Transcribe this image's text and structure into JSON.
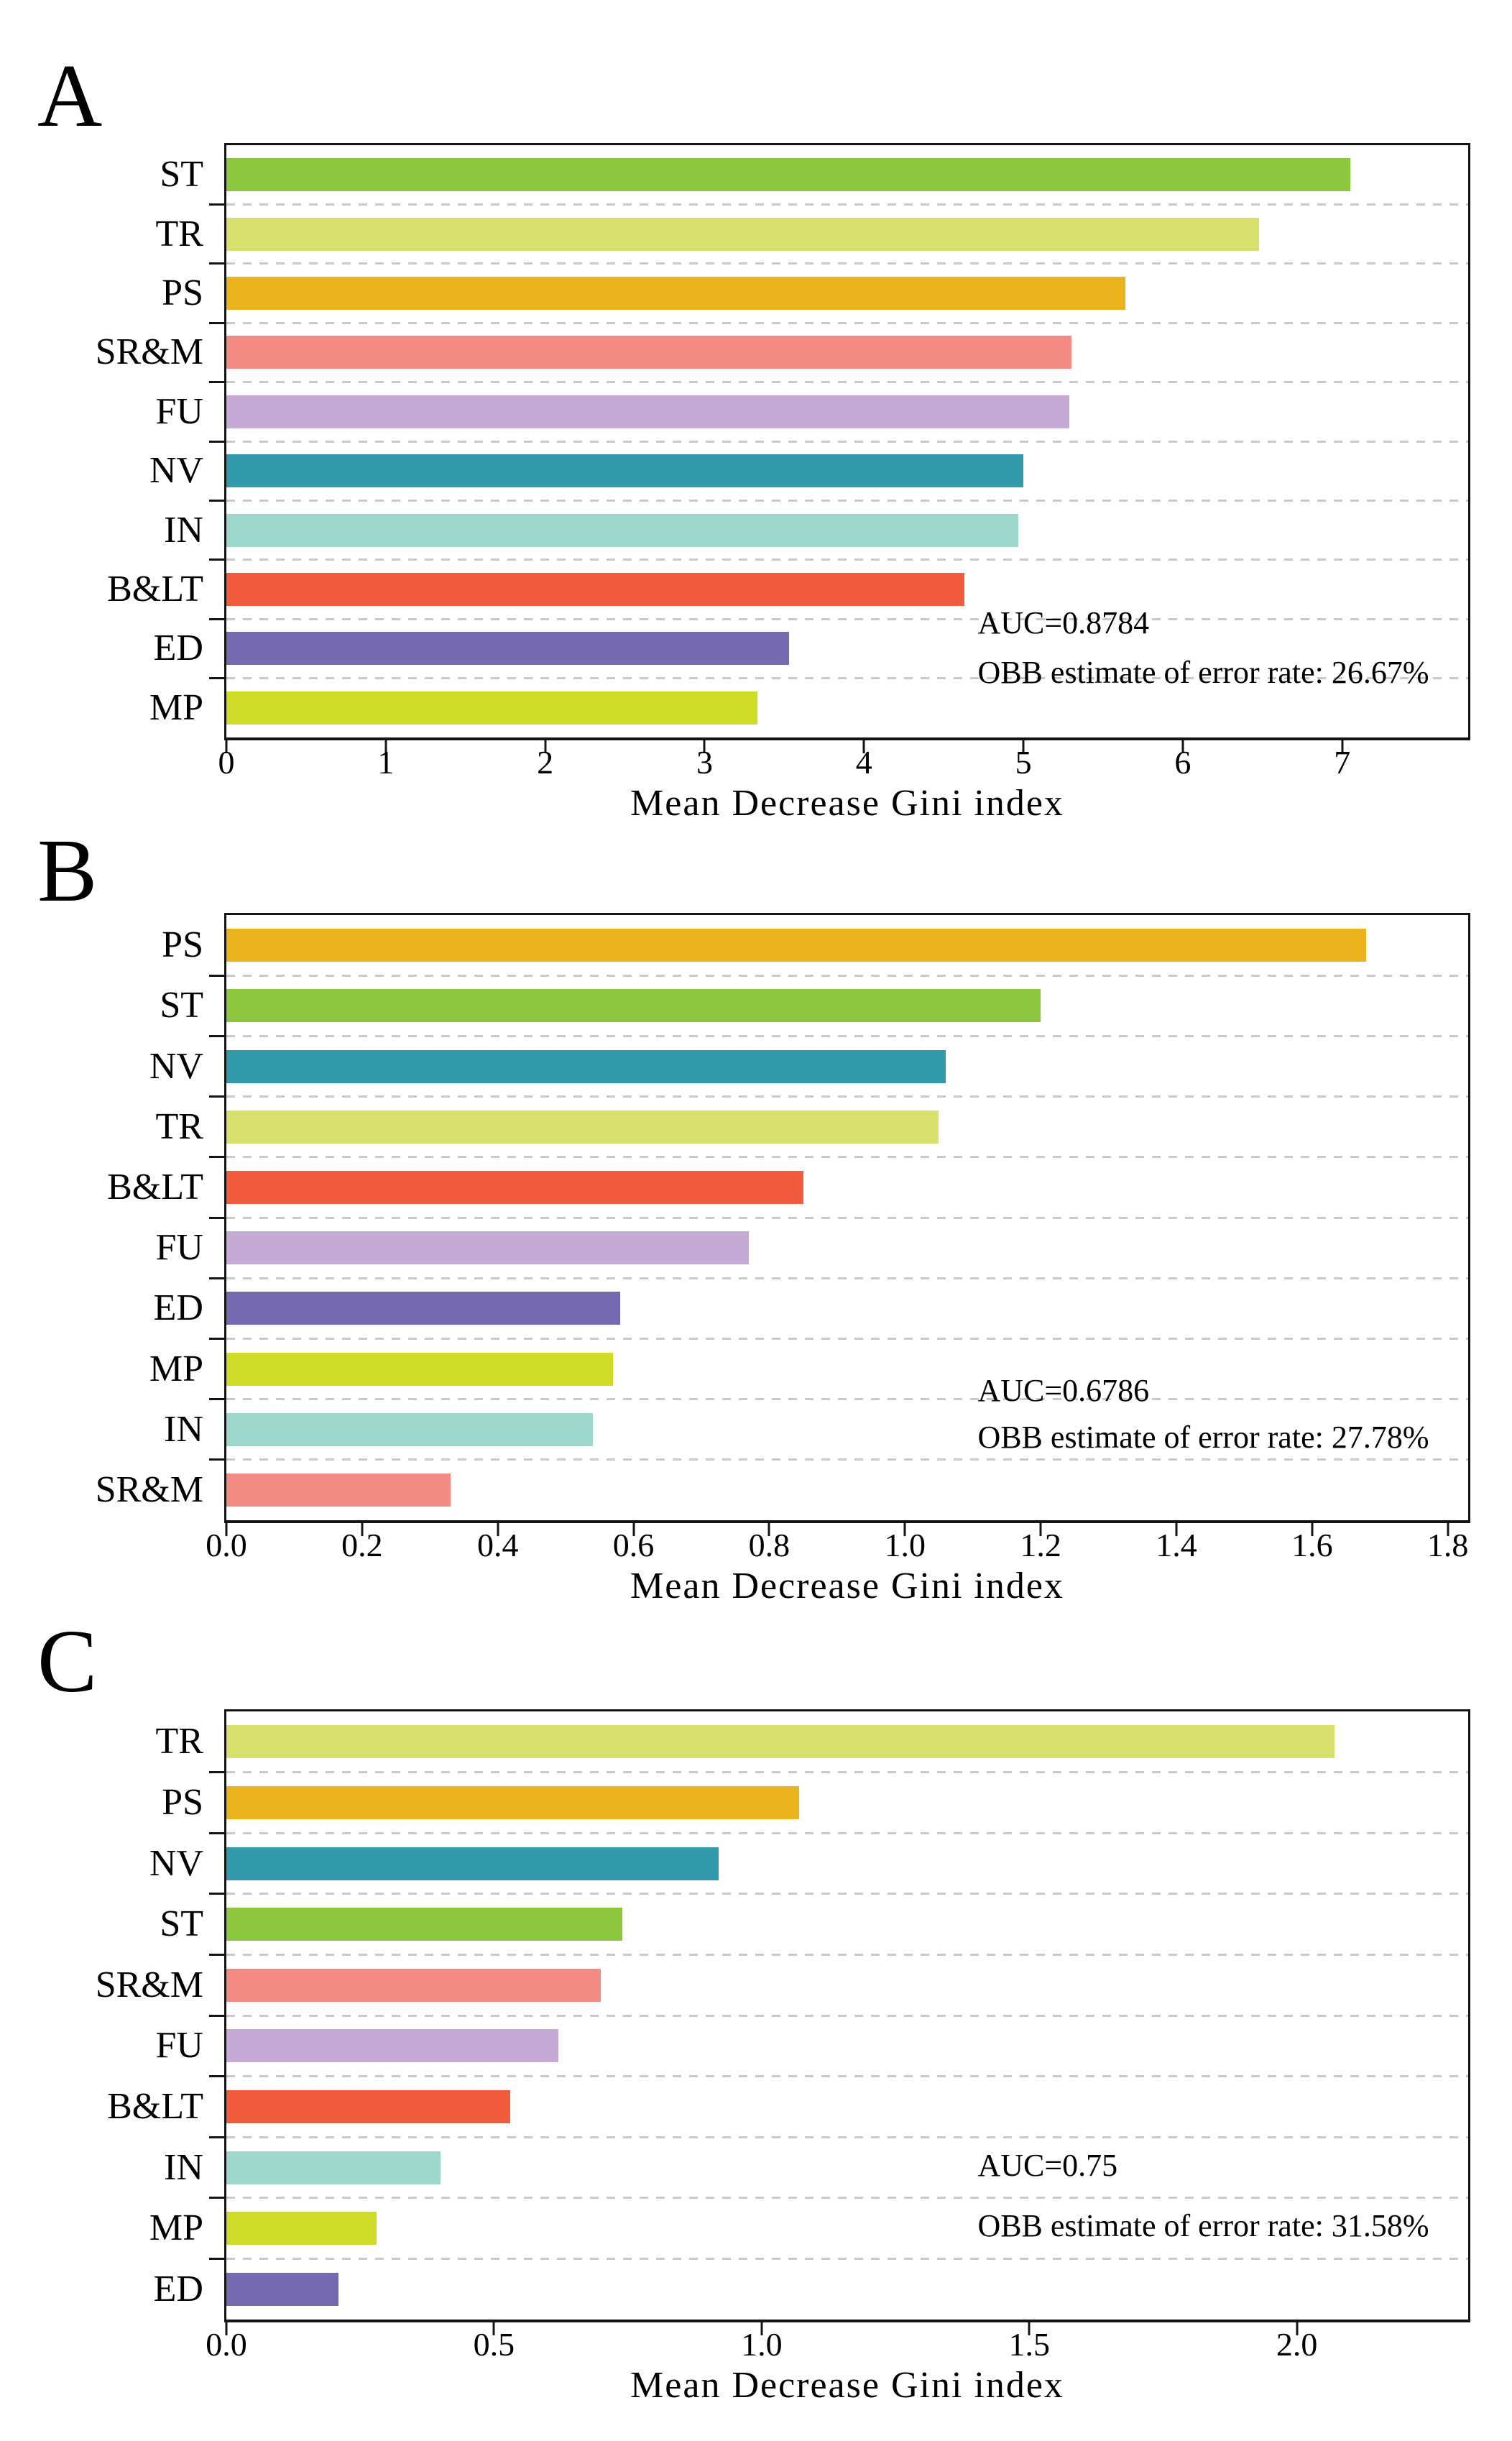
{
  "category_colors": {
    "ST": "#8CC63F",
    "TR": "#D8E06E",
    "PS": "#EBB31D",
    "SR&M": "#F28C85",
    "FU": "#C5AAD5",
    "NV": "#329AAB",
    "IN": "#9ED8CD",
    "B&LT": "#F05A3D",
    "ED": "#7569AF",
    "MP": "#CEDC27"
  },
  "axis_color": "#141414",
  "gridline_color": "#c9c9c9",
  "chart_data": [
    {
      "type": "bar",
      "orientation": "horizontal",
      "panel_label": "A",
      "title": "",
      "categories": [
        "ST",
        "TR",
        "PS",
        "SR&M",
        "FU",
        "NV",
        "IN",
        "B&LT",
        "ED",
        "MP"
      ],
      "values": [
        7.05,
        6.48,
        5.64,
        5.3,
        5.29,
        5.0,
        4.97,
        4.63,
        3.53,
        3.33
      ],
      "xlabel": "Mean Decrease Gini index",
      "xlim": [
        0,
        7.79
      ],
      "x_ticks": [
        0,
        1,
        2,
        3,
        4,
        5,
        6,
        7
      ],
      "x_tick_labels": [
        "0",
        "1",
        "2",
        "3",
        "4",
        "5",
        "6",
        "7"
      ],
      "grid": "dashed horizontal lines between category rows",
      "legend": "none",
      "annotations": [
        "AUC=0.8784",
        "OBB estimate of error rate: 26.67%"
      ]
    },
    {
      "type": "bar",
      "orientation": "horizontal",
      "panel_label": "B",
      "title": "",
      "categories": [
        "PS",
        "ST",
        "NV",
        "TR",
        "B&LT",
        "FU",
        "ED",
        "MP",
        "IN",
        "SR&M"
      ],
      "values": [
        1.68,
        1.2,
        1.06,
        1.05,
        0.85,
        0.77,
        0.58,
        0.57,
        0.54,
        0.33
      ],
      "xlabel": "Mean Decrease Gini index",
      "xlim": [
        0,
        1.83
      ],
      "x_ticks": [
        0.0,
        0.2,
        0.4,
        0.6,
        0.8,
        1.0,
        1.2,
        1.4,
        1.6,
        1.8
      ],
      "x_tick_labels": [
        "0.0",
        "0.2",
        "0.4",
        "0.6",
        "0.8",
        "1.0",
        "1.2",
        "1.4",
        "1.6",
        "1.8"
      ],
      "grid": "dashed horizontal lines between category rows",
      "legend": "none",
      "annotations": [
        "AUC=0.6786",
        "OBB estimate of error rate: 27.78%"
      ]
    },
    {
      "type": "bar",
      "orientation": "horizontal",
      "panel_label": "C",
      "title": "",
      "categories": [
        "TR",
        "PS",
        "NV",
        "ST",
        "SR&M",
        "FU",
        "B&LT",
        "IN",
        "MP",
        "ED"
      ],
      "values": [
        2.07,
        1.07,
        0.92,
        0.74,
        0.7,
        0.62,
        0.53,
        0.4,
        0.28,
        0.21
      ],
      "xlabel": "Mean Decrease Gini index",
      "xlim": [
        0,
        2.32
      ],
      "x_ticks": [
        0.0,
        0.5,
        1.0,
        1.5,
        2.0
      ],
      "x_tick_labels": [
        "0.0",
        "0.5",
        "1.0",
        "1.5",
        "2.0"
      ],
      "grid": "dashed horizontal lines between category rows",
      "legend": "none",
      "annotations": [
        "AUC=0.75",
        "OBB estimate of error rate: 31.58%"
      ]
    }
  ]
}
